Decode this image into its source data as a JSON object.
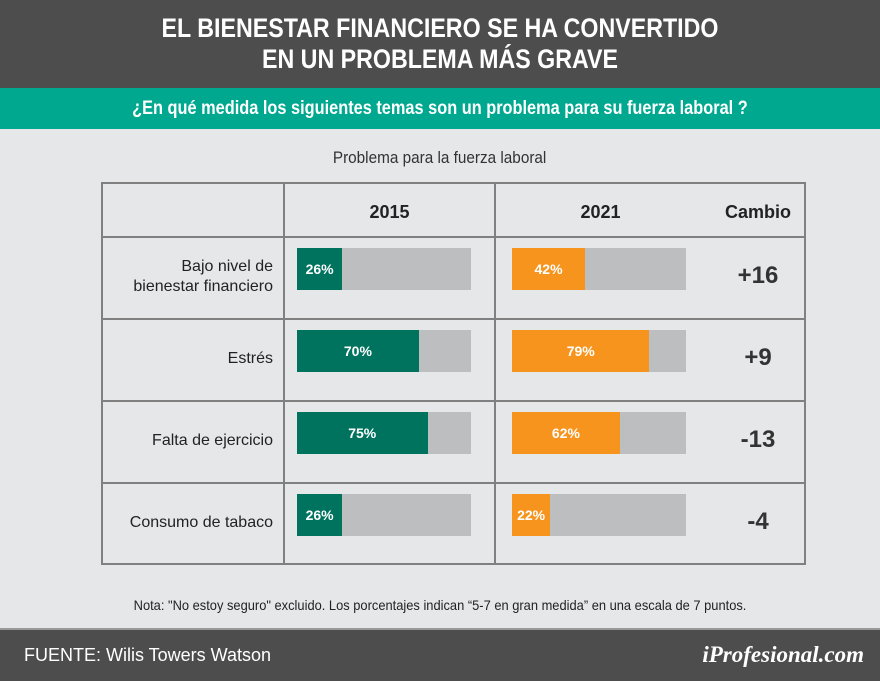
{
  "header": {
    "title_line1": "EL BIENESTAR FINANCIERO SE HA CONVERTIDO",
    "title_line2": "EN UN PROBLEMA MÁS GRAVE"
  },
  "subtitle": "¿En qué medida los siguientes temas son un problema para su fuerza laboral ?",
  "colors": {
    "header_bg": "#4d4d4d",
    "teal_band": "#00a88f",
    "bar_2015": "#00735f",
    "bar_2021": "#f7941d",
    "bar_bg": "#bcbec0"
  },
  "chart_data": {
    "type": "bar",
    "title": "Problema para la fuerza laboral",
    "columns": [
      "2015",
      "2021",
      "Cambio"
    ],
    "categories": [
      "Bajo nivel de bienestar financiero",
      "Estrés",
      "Falta de ejercicio",
      "Consumo de tabaco"
    ],
    "category_lines": [
      [
        "Bajo nivel de",
        "bienestar financiero"
      ],
      [
        "Estrés"
      ],
      [
        "Falta de ejercicio"
      ],
      [
        "Consumo de tabaco"
      ]
    ],
    "series": [
      {
        "name": "2015",
        "values": [
          26,
          70,
          75,
          26
        ],
        "labels": [
          "26%",
          "70%",
          "75%",
          "26%"
        ]
      },
      {
        "name": "2021",
        "values": [
          42,
          79,
          62,
          22
        ],
        "labels": [
          "42%",
          "79%",
          "62%",
          "22%"
        ]
      }
    ],
    "change": [
      "+16",
      "+9",
      "-13",
      "-4"
    ],
    "ylim": [
      0,
      100
    ]
  },
  "note": "Nota: \"No estoy seguro\" excluido. Los porcentajes indican “5-7 en gran medida” en una escala de 7 puntos.",
  "footer": {
    "source": "FUENTE:  Wilis Towers Watson",
    "logo": "iProfesional.com"
  }
}
